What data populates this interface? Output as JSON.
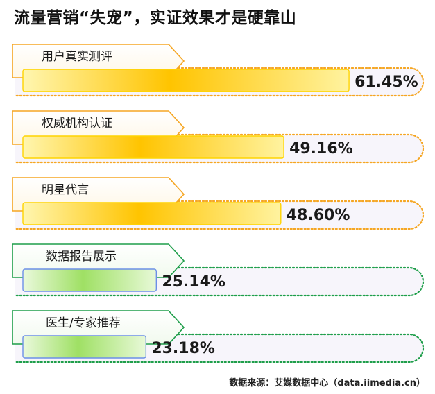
{
  "title": "流量营销“失宠”，实证效果才是硬靠山",
  "source": "数据来源：艾媒数据中心（data.iimedia.cn）",
  "colors": {
    "gold_outline": "#F5A623",
    "gold_bar_edge": "#FFD400",
    "gold_bar_center": "#FFC400",
    "gold_bar_light": "#FFF3A0",
    "green_outline": "#1E9E4A",
    "green_bar_center": "#A6E36A",
    "green_bar_light": "#E8F9D8",
    "blue_bar_border": "#6C8FE8",
    "track_fill": "#F7F5FB"
  },
  "chart_data": {
    "type": "bar",
    "orientation": "horizontal",
    "unit": "%",
    "xlim": [
      0,
      100
    ],
    "categories": [
      "用户真实测评",
      "权威机构认证",
      "明星代言",
      "数据报告展示",
      "医生/专家推荐"
    ],
    "values": [
      61.45,
      49.16,
      48.6,
      25.14,
      23.18
    ],
    "value_labels": [
      "61.45%",
      "49.16%",
      "48.60%",
      "25.14%",
      "23.18%"
    ],
    "styles": [
      "gold",
      "gold",
      "gold",
      "green",
      "green"
    ]
  }
}
